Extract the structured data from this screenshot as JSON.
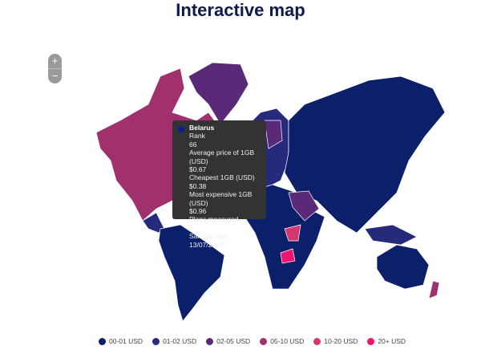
{
  "title": "Interactive map",
  "zoom": {
    "in": "+",
    "out": "−"
  },
  "tooltip": {
    "country": "Belarus",
    "color": "#0c1f8f",
    "rows": [
      "Rank",
      "66",
      "Average price of 1GB (USD)",
      "$0.67",
      "Cheapest 1GB (USD)",
      "$0.38",
      "Most expensive 1GB (USD)",
      "$0.96",
      "Plans measured",
      "2",
      "Sample data",
      "13/07/2023"
    ]
  },
  "legend": [
    {
      "label": "00-01 USD",
      "color": "#0c1f6b"
    },
    {
      "label": "01-02 USD",
      "color": "#262a7a"
    },
    {
      "label": "02-05 USD",
      "color": "#5a2a78"
    },
    {
      "label": "05-10 USD",
      "color": "#a0306e"
    },
    {
      "label": "10-20 USD",
      "color": "#d2386f"
    },
    {
      "label": "20+ USD",
      "color": "#f0136f"
    }
  ]
}
